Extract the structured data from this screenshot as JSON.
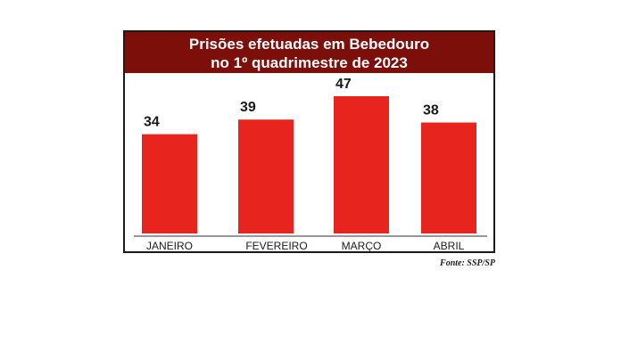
{
  "chart_data": {
    "type": "bar",
    "title": "Prisões efetuadas em Bebedouro",
    "subtitle": "no 1º quadrimestre de 2023",
    "categories": [
      "JANEIRO",
      "FEVEREIRO",
      "MARÇO",
      "ABRIL"
    ],
    "values": [
      34,
      39,
      47,
      38
    ],
    "ylim": [
      0,
      47
    ],
    "grid": false,
    "legend": "none",
    "bar_color": "#e8241f",
    "header_color": "#7d0f0b"
  },
  "source": "Fonte: SSP/SP"
}
